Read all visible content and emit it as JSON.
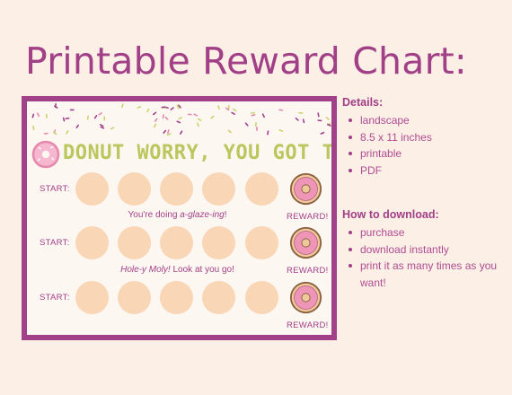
{
  "page_title": "Printable Reward Chart:",
  "chart": {
    "heading": "DONUT WORRY, YOU GOT THIS!",
    "rows": [
      {
        "label": "START:",
        "reward": "REWARD!"
      },
      {
        "label": "START:",
        "reward": "REWARD!"
      },
      {
        "label": "START:",
        "reward": "REWARD!"
      }
    ],
    "encouragements": [
      {
        "prefix": "You're doing ",
        "emph": "a-glaze-ing",
        "suffix": "!"
      },
      {
        "prefix": "",
        "emph": "Hole-y Moly!",
        "suffix": " Look at you go!"
      }
    ],
    "colors": {
      "frame": "#a0418a",
      "circle": "#f9d6b5",
      "heading": "#b9c75c",
      "donut_icing": "#f2a7c3"
    }
  },
  "details": {
    "heading": "Details:",
    "items": [
      "landscape",
      "8.5 x 11 inches",
      "printable",
      "PDF"
    ]
  },
  "download": {
    "heading": "How to download:",
    "items": [
      "purchase",
      "download instantly",
      "print it as many times as you want!"
    ]
  }
}
